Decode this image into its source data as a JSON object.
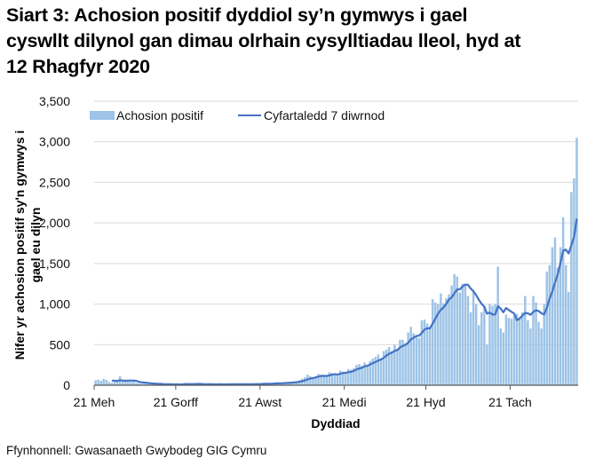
{
  "title": {
    "lines": [
      "Siart 3: Achosion positif dyddiol sy’n gymwys i gael",
      "cyswllt dilynol gan dimau olrhain cysylltiadau lleol, hyd at",
      "12 Rhagfyr 2020"
    ]
  },
  "source": "Ffynhonnell: Gwasanaeth Gwybodeg GIG Cymru",
  "colors": {
    "bar": "#9dc3e6",
    "line": "#4472c4",
    "grid": "#d9d9d9",
    "axis": "#595959"
  },
  "chart_data": {
    "type": "bar",
    "title": "Siart 3: Achosion positif dyddiol sy’n gymwys i gael cyswllt dilynol gan dimau olrhain cysylltiadau lleol, hyd at 12 Rhagfyr 2020",
    "xlabel": "Dyddiad",
    "ylabel": "Nifer yr achosion positif sy'n gymwys i gael eu dilyn",
    "ylim": [
      0,
      3500
    ],
    "yticks": [
      0,
      500,
      1000,
      1500,
      2000,
      2500,
      3000,
      3500
    ],
    "ytick_labels": [
      "0",
      "500",
      "1,000",
      "1,500",
      "2,000",
      "2,500",
      "3,000",
      "3,500"
    ],
    "xticks": [
      {
        "label": "21 Meh",
        "index": 0
      },
      {
        "label": "21 Gorff",
        "index": 30
      },
      {
        "label": "21 Awst",
        "index": 61
      },
      {
        "label": "21 Medi",
        "index": 92
      },
      {
        "label": "21 Hyd",
        "index": 122
      },
      {
        "label": "21 Tach",
        "index": 153
      }
    ],
    "date_range": [
      "21 Meh 2020",
      "12 Rhagfyr 2020"
    ],
    "grid": true,
    "legend_position": "top",
    "legend": [
      "Achosion positif",
      "Cyfartaledd 7 diwrnod"
    ],
    "series": [
      {
        "name": "Achosion positif",
        "type": "bar",
        "values": [
          60,
          70,
          55,
          80,
          65,
          40,
          30,
          55,
          45,
          110,
          60,
          50,
          45,
          40,
          45,
          30,
          25,
          20,
          25,
          18,
          15,
          20,
          12,
          10,
          15,
          12,
          10,
          8,
          10,
          12,
          10,
          8,
          15,
          30,
          12,
          10,
          15,
          20,
          10,
          12,
          15,
          10,
          12,
          8,
          10,
          12,
          15,
          10,
          12,
          10,
          15,
          12,
          10,
          15,
          12,
          10,
          15,
          20,
          12,
          15,
          18,
          20,
          25,
          18,
          20,
          22,
          30,
          25,
          28,
          30,
          35,
          40,
          35,
          45,
          50,
          60,
          80,
          100,
          130,
          110,
          90,
          100,
          140,
          130,
          110,
          120,
          160,
          150,
          140,
          120,
          180,
          170,
          160,
          200,
          190,
          210,
          250,
          260,
          240,
          280,
          250,
          300,
          330,
          350,
          380,
          330,
          420,
          440,
          470,
          420,
          500,
          450,
          560,
          560,
          520,
          650,
          720,
          640,
          600,
          580,
          800,
          810,
          760,
          720,
          1060,
          1020,
          1000,
          1130,
          1010,
          1070,
          1120,
          1230,
          1370,
          1340,
          1140,
          1250,
          1230,
          1100,
          900,
          1150,
          1000,
          740,
          900,
          980,
          500,
          1000,
          980,
          1000,
          1460,
          700,
          650,
          870,
          830,
          820,
          860,
          880,
          840,
          900,
          1100,
          800,
          700,
          1100,
          1020,
          780,
          700,
          1000,
          1400,
          1480,
          1700,
          1820,
          1450,
          1700,
          2070,
          1480,
          1150,
          2380,
          2550,
          3050
        ]
      },
      {
        "name": "Cyfartaledd 7 diwrnod",
        "type": "line",
        "values": "7-day rolling mean of Achosion positif (starting at index 6)"
      }
    ]
  }
}
